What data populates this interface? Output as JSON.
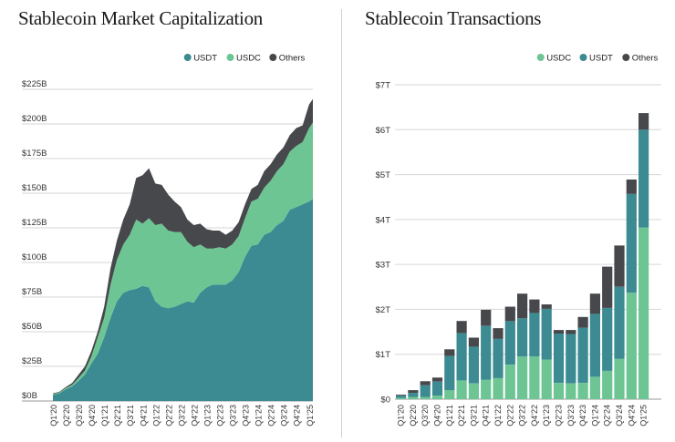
{
  "charts": {
    "market_cap": {
      "title": "Stablecoin Market Capitalization"
    },
    "transactions": {
      "title": "Stablecoin Transactions"
    }
  },
  "colors": {
    "usdt": "#3c8a92",
    "usdc": "#6cc593",
    "others": "#46484c",
    "grid": "#d6d6d6"
  },
  "chart_data": [
    {
      "type": "area",
      "title": "Stablecoin Market Capitalization",
      "stacked": true,
      "ylim": [
        0,
        225
      ],
      "y_unit": "$B",
      "y_ticks": [
        "$0B",
        "$25B",
        "$50B",
        "$75B",
        "$100B",
        "$125B",
        "$150B",
        "$175B",
        "$200B",
        "$225B"
      ],
      "x_ticks": [
        "Q1'20",
        "Q2'20",
        "Q3'20",
        "Q4'20",
        "Q1'21",
        "Q2'21",
        "Q3'21",
        "Q4'21",
        "Q1'22",
        "Q2'22",
        "Q3'22",
        "Q4'22",
        "Q1'23",
        "Q2'23",
        "Q3'23",
        "Q4'23",
        "Q1'24",
        "Q2'24",
        "Q3'24",
        "Q4'24",
        "Q1'25"
      ],
      "legend": [
        "USDT",
        "USDC",
        "Others"
      ],
      "legend_position": "top-right",
      "x": [
        0,
        0.5,
        1,
        1.5,
        2,
        2.5,
        3,
        3.5,
        4,
        4.5,
        5,
        5.5,
        6,
        6.5,
        7,
        7.5,
        8,
        8.5,
        9,
        9.5,
        10,
        10.5,
        11,
        11.5,
        12,
        12.5,
        13,
        13.5,
        14,
        14.5,
        15,
        15.5,
        16,
        16.5,
        17,
        17.5,
        18,
        18.5,
        19,
        19.5,
        20,
        20.3
      ],
      "series": [
        {
          "name": "USDT",
          "values": [
            4.5,
            5.5,
            8.5,
            10.5,
            14.5,
            19,
            27,
            34,
            46,
            60,
            72,
            78,
            80,
            81,
            83,
            82,
            72,
            68,
            67,
            68,
            70,
            72,
            71,
            78,
            82,
            84,
            84,
            84,
            87,
            93,
            104,
            112,
            113,
            120,
            122,
            127,
            130,
            138,
            140,
            142,
            144,
            146
          ]
        },
        {
          "name": "USDC",
          "values": [
            0.5,
            0.6,
            0.8,
            1.2,
            2,
            3,
            5,
            12,
            14,
            24,
            30,
            35,
            40,
            50,
            45,
            50,
            55,
            60,
            56,
            54,
            52,
            43,
            40,
            35,
            28,
            26,
            27,
            26,
            26,
            26,
            28,
            32,
            33,
            34,
            37,
            39,
            41,
            42,
            44,
            45,
            53,
            55
          ]
        },
        {
          "name": "Others",
          "values": [
            0.5,
            0.5,
            0.7,
            1.3,
            2.5,
            3,
            4,
            4,
            8,
            12,
            14,
            18,
            22,
            30,
            35,
            36,
            30,
            28,
            26,
            22,
            18,
            16,
            16,
            15,
            14,
            13,
            12,
            10,
            10,
            10,
            10,
            9,
            10,
            12,
            12,
            12,
            12,
            12,
            13,
            12,
            17,
            17
          ]
        }
      ]
    },
    {
      "type": "bar",
      "title": "Stablecoin Transactions",
      "stacked": true,
      "ylim": [
        0,
        7
      ],
      "y_unit": "$T",
      "y_ticks": [
        "$0",
        "$1T",
        "$2T",
        "$3T",
        "$4T",
        "$5T",
        "$6T",
        "$7T"
      ],
      "categories": [
        "Q1'20",
        "Q2'20",
        "Q3'20",
        "Q4'20",
        "Q1'21",
        "Q2'21",
        "Q3'21",
        "Q4'21",
        "Q1'22",
        "Q2'22",
        "Q3'22",
        "Q4'22",
        "Q1'23",
        "Q2'23",
        "Q3'23",
        "Q4'23",
        "Q1'24",
        "Q2'24",
        "Q3'24",
        "Q4'24",
        "Q1'25"
      ],
      "legend": [
        "USDC",
        "USDT",
        "Others"
      ],
      "legend_position": "top-right",
      "series": [
        {
          "name": "USDC",
          "values": [
            0.03,
            0.05,
            0.05,
            0.08,
            0.2,
            0.42,
            0.35,
            0.43,
            0.47,
            0.77,
            0.95,
            0.95,
            0.88,
            0.36,
            0.35,
            0.36,
            0.5,
            0.63,
            0.9,
            2.37,
            3.82
          ]
        },
        {
          "name": "USDT",
          "values": [
            0.05,
            0.09,
            0.26,
            0.31,
            0.76,
            1.05,
            0.82,
            1.2,
            0.87,
            0.97,
            0.85,
            0.97,
            1.13,
            1.1,
            1.1,
            1.23,
            1.4,
            1.4,
            1.6,
            2.2,
            2.18
          ]
        },
        {
          "name": "Others",
          "values": [
            0.02,
            0.06,
            0.09,
            0.09,
            0.15,
            0.27,
            0.2,
            0.36,
            0.24,
            0.32,
            0.55,
            0.3,
            0.1,
            0.08,
            0.09,
            0.24,
            0.45,
            0.92,
            0.92,
            0.32,
            0.37
          ]
        }
      ]
    }
  ]
}
